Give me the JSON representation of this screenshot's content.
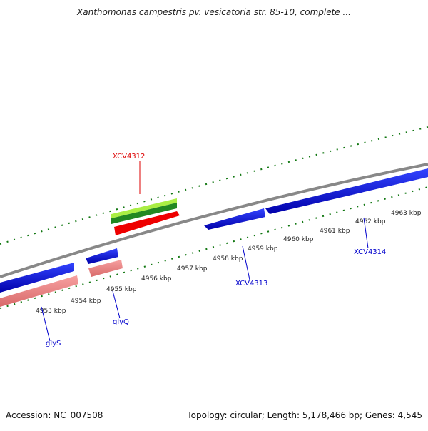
{
  "title": "Xanthomonas campestris pv. vesicatoria str. 85-10, complete ...",
  "footer": {
    "accession": "Accession: NC_007508",
    "summary": "Topology: circular; Length: 5,178,466 bp; Genes: 4,545"
  },
  "ruler_ticks": [
    "4953 kbp",
    "4954 kbp",
    "4955 kbp",
    "4956 kbp",
    "4957 kbp",
    "4958 kbp",
    "4959 kbp",
    "4960 kbp",
    "4961 kbp",
    "4962 kbp",
    "4963 kbp"
  ],
  "genes": [
    {
      "name": "glyS",
      "color": "#0000cc"
    },
    {
      "name": "glyQ",
      "color": "#0000cc"
    },
    {
      "name": "XCV4312",
      "color": "#dd0000"
    },
    {
      "name": "XCV4313",
      "color": "#0000cc"
    },
    {
      "name": "XCV4314",
      "color": "#0000cc"
    }
  ],
  "colors": {
    "backbone": "#808080",
    "plus_strand": "#0000dd",
    "minus_strand": "#f08080",
    "highlight": "#ee0000",
    "green_light": "#aaee44",
    "green_dark": "#228822",
    "tick": "#117711"
  }
}
